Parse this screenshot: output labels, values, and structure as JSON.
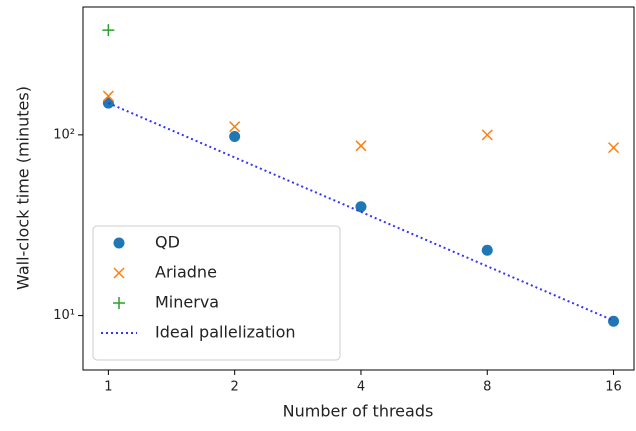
{
  "chart_data": {
    "type": "scatter",
    "x_label": "Number of threads",
    "y_label": "Wall-clock time (minutes)",
    "xscale": "log2",
    "yscale": "log",
    "xlim": [
      0.87,
      17.9
    ],
    "ylim": [
      5,
      510
    ],
    "xticks": [
      1,
      2,
      4,
      8,
      16
    ],
    "yticks": [
      {
        "value": 10,
        "label": "10¹"
      },
      {
        "value": 100,
        "label": "10²"
      }
    ],
    "legend": "lower left",
    "series": [
      {
        "name": "QD",
        "color": "#1f77b4",
        "marker": "circle",
        "x": [
          1,
          2,
          4,
          8,
          16
        ],
        "values": [
          150,
          98,
          40,
          23,
          9.3
        ]
      },
      {
        "name": "Ariadne",
        "color": "#ff7f0e",
        "marker": "x",
        "x": [
          1,
          2,
          4,
          8,
          16
        ],
        "values": [
          164,
          111,
          87,
          100,
          85
        ]
      },
      {
        "name": "Minerva",
        "color": "#2ca02c",
        "marker": "plus",
        "x": [
          1
        ],
        "values": [
          380
        ]
      },
      {
        "name": "Ideal pallelization",
        "color": "#3333ff",
        "marker": "dotted-line",
        "x": [
          1,
          16
        ],
        "values": [
          150,
          9.375
        ]
      }
    ]
  }
}
